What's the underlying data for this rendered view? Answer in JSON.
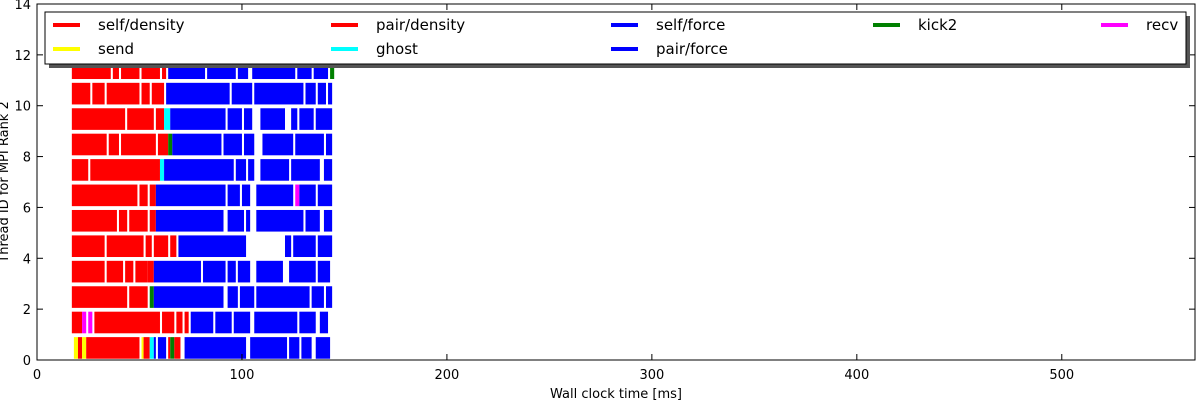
{
  "chart_data": {
    "type": "bar",
    "orientation": "horizontal-gantt",
    "xlabel": "Wall clock time [ms]",
    "ylabel": "Thread ID for MPI Rank 2",
    "xlim": [
      0,
      565
    ],
    "ylim": [
      0,
      14
    ],
    "x_ticks": [
      0,
      100,
      200,
      300,
      400,
      500
    ],
    "y_ticks": [
      0,
      2,
      4,
      6,
      8,
      10,
      12,
      14
    ],
    "grid": false,
    "legend_position": "top",
    "series": [
      {
        "name": "self/density",
        "color": "#ff0000"
      },
      {
        "name": "pair/density",
        "color": "#ff0000"
      },
      {
        "name": "self/force",
        "color": "#0000ff"
      },
      {
        "name": "kick2",
        "color": "#008000"
      },
      {
        "name": "recv",
        "color": "#ff00ff"
      },
      {
        "name": "send",
        "color": "#ffff00"
      },
      {
        "name": "ghost",
        "color": "#00ffff"
      },
      {
        "name": "pair/force",
        "color": "#0000ff"
      }
    ],
    "threads": [
      {
        "thread": 0,
        "tasks": [
          [
            18,
            20,
            "send"
          ],
          [
            20,
            22,
            "pair/density"
          ],
          [
            22,
            24,
            "send"
          ],
          [
            24,
            50,
            "pair/density"
          ],
          [
            51,
            52,
            "send"
          ],
          [
            52,
            55,
            "pair/density"
          ],
          [
            55,
            57,
            "ghost"
          ],
          [
            57,
            58,
            "self/force"
          ],
          [
            59,
            63,
            "pair/force"
          ],
          [
            64,
            65,
            "pair/density"
          ],
          [
            65,
            67,
            "kick2"
          ],
          [
            67,
            70,
            "pair/density"
          ],
          [
            72,
            102,
            "pair/force"
          ],
          [
            104,
            122,
            "pair/force"
          ],
          [
            123,
            128,
            "self/force"
          ],
          [
            129,
            134,
            "pair/force"
          ],
          [
            136,
            143,
            "pair/force"
          ]
        ]
      },
      {
        "thread": 1,
        "tasks": [
          [
            17,
            22,
            "pair/density"
          ],
          [
            22,
            24,
            "recv"
          ],
          [
            25,
            27,
            "recv"
          ],
          [
            28,
            60,
            "pair/density"
          ],
          [
            61,
            67,
            "pair/density"
          ],
          [
            68,
            71,
            "pair/density"
          ],
          [
            72,
            74,
            "pair/density"
          ],
          [
            75,
            86,
            "pair/force"
          ],
          [
            87,
            95,
            "pair/force"
          ],
          [
            96,
            104,
            "pair/force"
          ],
          [
            106,
            127,
            "pair/force"
          ],
          [
            128,
            136,
            "pair/force"
          ],
          [
            138,
            142,
            "pair/force"
          ]
        ]
      },
      {
        "thread": 2,
        "tasks": [
          [
            17,
            44,
            "pair/density"
          ],
          [
            45,
            54,
            "pair/density"
          ],
          [
            55,
            57,
            "kick2"
          ],
          [
            57,
            91,
            "pair/force"
          ],
          [
            93,
            98,
            "pair/force"
          ],
          [
            99,
            106,
            "pair/force"
          ],
          [
            107,
            133,
            "pair/force"
          ],
          [
            134,
            140,
            "pair/force"
          ],
          [
            141,
            144,
            "pair/force"
          ]
        ]
      },
      {
        "thread": 3,
        "tasks": [
          [
            17,
            33,
            "pair/density"
          ],
          [
            34,
            42,
            "pair/density"
          ],
          [
            43,
            47,
            "pair/density"
          ],
          [
            48,
            54,
            "pair/density"
          ],
          [
            54,
            57,
            "pair/density"
          ],
          [
            57,
            80,
            "pair/force"
          ],
          [
            81,
            92,
            "pair/force"
          ],
          [
            93,
            97,
            "pair/force"
          ],
          [
            98,
            104,
            "pair/force"
          ],
          [
            107,
            120,
            "pair/force"
          ],
          [
            123,
            136,
            "pair/force"
          ],
          [
            137,
            143,
            "pair/force"
          ]
        ]
      },
      {
        "thread": 4,
        "tasks": [
          [
            17,
            33,
            "pair/density"
          ],
          [
            34,
            52,
            "pair/density"
          ],
          [
            53,
            56,
            "pair/density"
          ],
          [
            57,
            64,
            "pair/density"
          ],
          [
            65,
            68,
            "pair/density"
          ],
          [
            69,
            102,
            "pair/force"
          ],
          [
            121,
            124,
            "pair/force"
          ],
          [
            125,
            136,
            "pair/force"
          ],
          [
            137,
            144,
            "pair/force"
          ]
        ]
      },
      {
        "thread": 5,
        "tasks": [
          [
            17,
            39,
            "pair/density"
          ],
          [
            40,
            44,
            "pair/density"
          ],
          [
            45,
            54,
            "pair/density"
          ],
          [
            55,
            58,
            "pair/density"
          ],
          [
            58,
            91,
            "pair/force"
          ],
          [
            93,
            101,
            "pair/force"
          ],
          [
            102,
            104,
            "pair/force"
          ],
          [
            107,
            130,
            "pair/force"
          ],
          [
            131,
            138,
            "pair/force"
          ],
          [
            140,
            144,
            "pair/force"
          ]
        ]
      },
      {
        "thread": 6,
        "tasks": [
          [
            17,
            49,
            "pair/density"
          ],
          [
            50,
            54,
            "pair/density"
          ],
          [
            55,
            58,
            "pair/density"
          ],
          [
            58,
            92,
            "pair/force"
          ],
          [
            93,
            99,
            "pair/force"
          ],
          [
            100,
            104,
            "pair/force"
          ],
          [
            107,
            125,
            "pair/force"
          ],
          [
            126,
            128,
            "recv"
          ],
          [
            128,
            136,
            "pair/force"
          ],
          [
            137,
            144,
            "pair/force"
          ]
        ]
      },
      {
        "thread": 7,
        "tasks": [
          [
            17,
            25,
            "pair/density"
          ],
          [
            26,
            60,
            "pair/density"
          ],
          [
            60,
            62,
            "ghost"
          ],
          [
            62,
            96,
            "pair/force"
          ],
          [
            97,
            102,
            "pair/force"
          ],
          [
            103,
            106,
            "pair/force"
          ],
          [
            109,
            123,
            "pair/force"
          ],
          [
            124,
            138,
            "pair/force"
          ],
          [
            140,
            144,
            "pair/force"
          ]
        ]
      },
      {
        "thread": 8,
        "tasks": [
          [
            17,
            34,
            "pair/density"
          ],
          [
            35,
            40,
            "pair/density"
          ],
          [
            41,
            58,
            "pair/density"
          ],
          [
            59,
            64,
            "pair/density"
          ],
          [
            64,
            66,
            "kick2"
          ],
          [
            66,
            90,
            "pair/force"
          ],
          [
            91,
            100,
            "pair/force"
          ],
          [
            101,
            106,
            "pair/force"
          ],
          [
            110,
            125,
            "pair/force"
          ],
          [
            126,
            140,
            "pair/force"
          ],
          [
            141,
            144,
            "pair/force"
          ]
        ]
      },
      {
        "thread": 9,
        "tasks": [
          [
            17,
            43,
            "pair/density"
          ],
          [
            44,
            57,
            "pair/density"
          ],
          [
            58,
            62,
            "pair/density"
          ],
          [
            62,
            65,
            "ghost"
          ],
          [
            65,
            92,
            "pair/force"
          ],
          [
            93,
            100,
            "pair/force"
          ],
          [
            101,
            105,
            "pair/force"
          ],
          [
            109,
            121,
            "pair/force"
          ],
          [
            124,
            127,
            "pair/force"
          ],
          [
            128,
            135,
            "pair/force"
          ],
          [
            136,
            144,
            "pair/force"
          ]
        ]
      },
      {
        "thread": 10,
        "tasks": [
          [
            17,
            26,
            "pair/density"
          ],
          [
            27,
            33,
            "pair/density"
          ],
          [
            34,
            50,
            "pair/density"
          ],
          [
            51,
            55,
            "pair/density"
          ],
          [
            56,
            62,
            "pair/density"
          ],
          [
            63,
            94,
            "pair/force"
          ],
          [
            95,
            105,
            "pair/force"
          ],
          [
            106,
            130,
            "pair/force"
          ],
          [
            131,
            136,
            "pair/force"
          ],
          [
            137,
            141,
            "pair/force"
          ],
          [
            142,
            144,
            "pair/force"
          ]
        ]
      },
      {
        "thread": 11,
        "tasks": [
          [
            17,
            36,
            "pair/density"
          ],
          [
            37,
            40,
            "pair/density"
          ],
          [
            41,
            50,
            "pair/density"
          ],
          [
            51,
            60,
            "pair/density"
          ],
          [
            61,
            63,
            "pair/density"
          ],
          [
            64,
            82,
            "pair/force"
          ],
          [
            83,
            97,
            "pair/force"
          ],
          [
            98,
            103,
            "pair/force"
          ],
          [
            105,
            126,
            "pair/force"
          ],
          [
            127,
            134,
            "pair/force"
          ],
          [
            135,
            142,
            "pair/force"
          ],
          [
            143,
            145,
            "kick2"
          ]
        ]
      }
    ]
  }
}
